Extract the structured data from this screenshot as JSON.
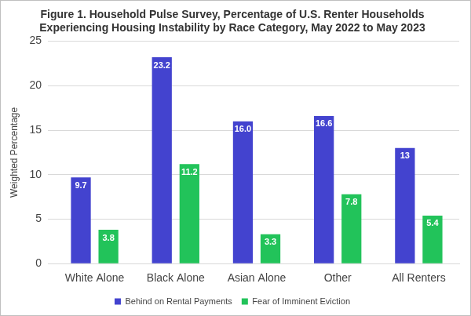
{
  "chart_data": {
    "type": "bar",
    "title": [
      "Figure 1. Household Pulse Survey, Percentage of U.S. Renter Households",
      "Experiencing Housing Instability by Race Category, May 2022 to May 2023"
    ],
    "y_label": "Weighted Percentage",
    "categories": [
      "White Alone",
      "Black Alone",
      "Asian Alone",
      "Other",
      "All Renters"
    ],
    "series": [
      {
        "name": "Behind on Rental Payments",
        "color": "#4343CF",
        "values": [
          9.7,
          23.2,
          16.0,
          16.6,
          13
        ],
        "value_labels": [
          "9.7",
          "23.2",
          "16.0",
          "16.6",
          "13"
        ]
      },
      {
        "name": "Fear of Imminent Eviction",
        "color": "#22C35A",
        "values": [
          3.8,
          11.2,
          3.3,
          7.8,
          5.4
        ],
        "value_labels": [
          "3.8",
          "11.2",
          "3.3",
          "7.8",
          "5.4"
        ]
      }
    ],
    "ylim": [
      0,
      25
    ],
    "yticks": [
      0,
      5,
      10,
      15,
      20,
      25
    ],
    "grid": true,
    "legend": "bottom",
    "data_labels": true
  }
}
